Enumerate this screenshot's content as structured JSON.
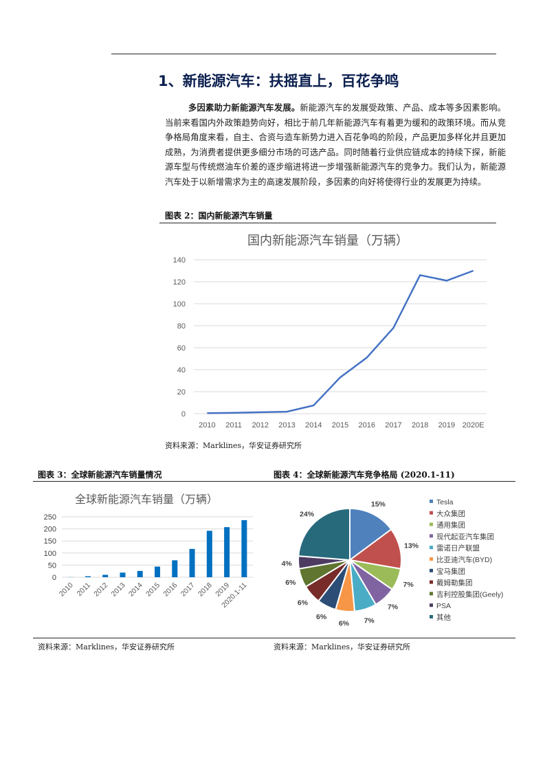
{
  "title": "1、新能源汽车：扶摇直上，百花争鸣",
  "paragraph": {
    "lead": "多因素助力新能源汽车发展。",
    "body": "新能源汽车的发展受政策、产品、成本等多因素影响。当前来看国内外政策趋势向好，相比于前几年新能源汽车有着更为缓和的政策环境。而从竞争格局角度来看，自主、合资与造车新势力进入百花争鸣的阶段，产品更加多样化并且更加成熟，为消费者提供更多细分市场的可选产品。同时随着行业供应链成本的持续下探，新能源车型与传统燃油车价差的逐步缩进将进一步增强新能源汽车的竞争力。我们认为，新能源汽车处于以新增需求为主的高速发展阶段，多因素的向好将使得行业的发展更为持续。"
  },
  "figures": {
    "fig2_label": "图表 2：国内新能源汽车销量",
    "fig3_label": "图表 3：全球新能源汽车销量情况",
    "fig4_label": "图表 4：全球新能源汽车竞争格局 (2020.1-11)",
    "source": "资料来源：Marklines，华安证券研究所"
  },
  "chart_data": [
    {
      "type": "line",
      "title": "国内新能源汽车销量（万辆）",
      "categories": [
        "2010",
        "2011",
        "2012",
        "2013",
        "2014",
        "2015",
        "2016",
        "2017",
        "2018",
        "2019",
        "2020E"
      ],
      "values": [
        0.5,
        0.8,
        1.3,
        1.8,
        7.5,
        33,
        51,
        78,
        126,
        121,
        130
      ],
      "ylim": [
        0,
        140
      ],
      "yticks": [
        0,
        20,
        40,
        60,
        80,
        100,
        120,
        140
      ],
      "grid": true,
      "color": "#4472c4"
    },
    {
      "type": "bar",
      "title": "全球新能源汽车销量（万辆）",
      "categories": [
        "2010",
        "2011",
        "2012",
        "2013",
        "2014",
        "2015",
        "2016",
        "2017",
        "2018",
        "2019",
        "2020.1-11"
      ],
      "values": [
        0.5,
        4,
        10,
        19,
        26,
        44,
        70,
        117,
        192,
        207,
        236
      ],
      "ylim": [
        0,
        250
      ],
      "yticks": [
        0,
        50,
        100,
        150,
        200,
        250
      ],
      "grid": true,
      "color": "#0070c0"
    },
    {
      "type": "pie",
      "legend": "right",
      "labels": [
        "Tesla",
        "大众集团",
        "通用集团",
        "现代起亚汽车集团",
        "雷诺日产联盟",
        "比亚迪汽车(BYD)",
        "宝马集团",
        "戴姆勒集团",
        "吉利控股集团(Geely)",
        "PSA",
        "其他"
      ],
      "values": [
        15,
        13,
        7,
        7,
        7,
        6,
        6,
        6,
        6,
        4,
        24
      ],
      "value_labels": [
        "15%",
        "13%",
        "7%",
        "7%",
        "7%",
        "6%",
        "6%",
        "6%",
        "6%",
        "4%",
        "24%"
      ],
      "colors": [
        "#4f81bd",
        "#c0504d",
        "#9bbb59",
        "#8064a2",
        "#4bacc6",
        "#f79646",
        "#2c4d75",
        "#772c2a",
        "#5f7530",
        "#4d3b62",
        "#276a7c"
      ]
    }
  ]
}
